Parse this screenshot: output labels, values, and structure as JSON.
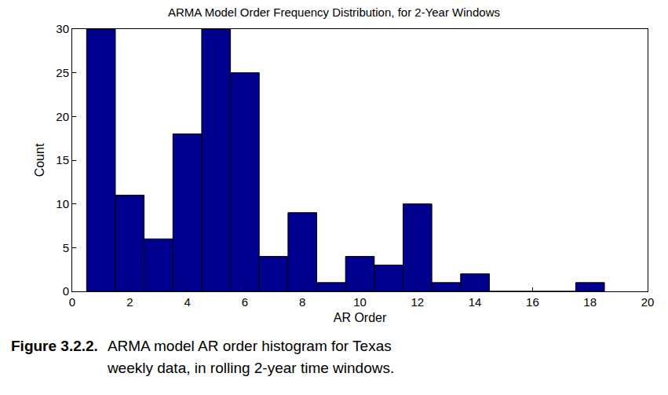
{
  "chart_data": {
    "type": "histogram",
    "title": "ARMA Model Order Frequency Distribution, for 2-Year Windows",
    "x_label": "AR Order",
    "y_label": "Count",
    "bins": [
      0.5,
      1.5,
      2.5,
      3.5,
      4.5,
      5.5,
      6.5,
      7.5,
      8.5,
      9.5,
      10.5,
      11.5,
      12.5,
      13.5,
      14.5,
      15.5,
      16.5,
      17.5,
      18.5
    ],
    "values": [
      30,
      11,
      6,
      18,
      30,
      25,
      4,
      9,
      1,
      4,
      3,
      10,
      1,
      2,
      0,
      0,
      0,
      1
    ],
    "color": "#00008f",
    "xlim": [
      0,
      20
    ],
    "xticks": [
      0,
      2,
      4,
      6,
      8,
      10,
      12,
      14,
      16,
      18,
      20
    ],
    "ylim": [
      0,
      30
    ],
    "yticks": [
      0,
      5,
      10,
      15,
      20,
      25,
      30
    ],
    "grid": false,
    "caption": {
      "label": "Figure 3.2.2.",
      "lines": [
        "ARMA model AR order histogram for Texas",
        "weekly data, in rolling 2-year time windows."
      ]
    }
  }
}
